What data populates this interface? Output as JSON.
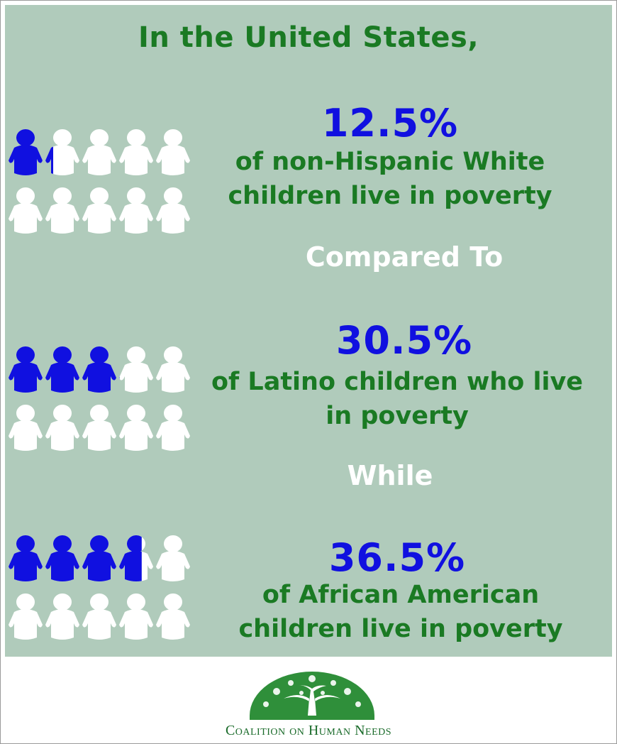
{
  "headline": "In the United States,",
  "stats": [
    {
      "percent_text": "12.5%",
      "description_lines": [
        "of non-Hispanic White",
        "children live in poverty"
      ],
      "value": 12.5,
      "filled_icons": 1.25,
      "total_icons": 10
    },
    {
      "percent_text": "30.5%",
      "description_lines": [
        "of Latino children who live",
        "in poverty"
      ],
      "value": 30.5,
      "filled_icons": 3.05,
      "total_icons": 10
    },
    {
      "percent_text": "36.5%",
      "description_lines": [
        "of African American",
        "children live in poverty"
      ],
      "value": 36.5,
      "filled_icons": 3.65,
      "total_icons": 10
    }
  ],
  "connectors": [
    "Compared To",
    "While"
  ],
  "footer": {
    "org_name": "Coalition on Human Needs",
    "logo_icon": "tree-icon"
  },
  "colors": {
    "panel_bg": "#b0cbbb",
    "headline_green": "#1a7a23",
    "percent_blue": "#1010e0",
    "icon_empty": "#ffffff",
    "connector_white": "#ffffff"
  }
}
